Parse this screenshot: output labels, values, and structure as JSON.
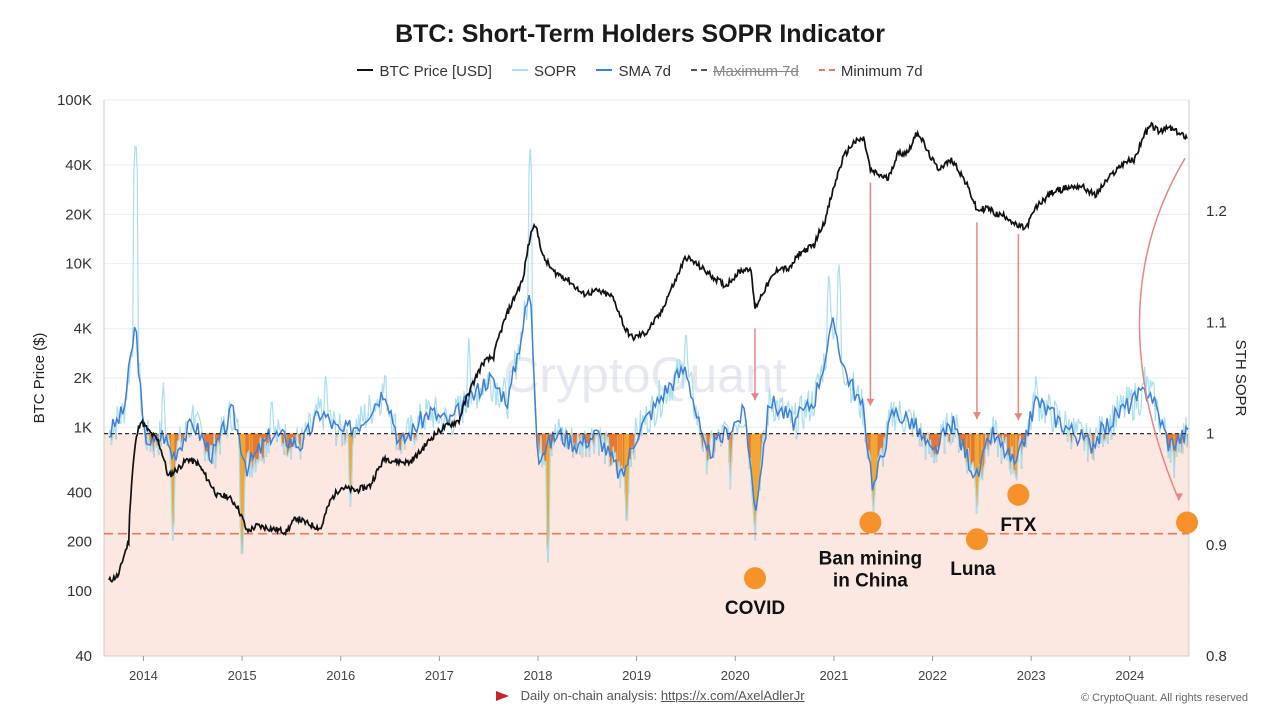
{
  "chart_data": {
    "type": "line",
    "title": "BTC: Short-Term Holders SOPR Indicator",
    "legend": [
      {
        "name": "BTC Price [USD]",
        "color": "#111111",
        "style": "solid",
        "strike": false
      },
      {
        "name": "SOPR",
        "color": "#a9dff0",
        "style": "solid",
        "strike": false
      },
      {
        "name": "SMA 7d",
        "color": "#3f7fd6",
        "style": "solid",
        "strike": false
      },
      {
        "name": "Maximum 7d",
        "color": "#555555",
        "style": "dashed",
        "strike": true
      },
      {
        "name": "Minimum 7d",
        "color": "#e07a5f",
        "style": "dashed",
        "strike": false
      }
    ],
    "legend_position": "top-center",
    "ylabel_left": "BTC Price ($)",
    "ylabel_right": "STH SOPR",
    "y_left_scale": "log",
    "y_left_range": [
      40,
      100000
    ],
    "y_left_ticks": [
      {
        "v": 100000,
        "label": "100K"
      },
      {
        "v": 40000,
        "label": "40K"
      },
      {
        "v": 20000,
        "label": "20K"
      },
      {
        "v": 10000,
        "label": "10K"
      },
      {
        "v": 4000,
        "label": "4K"
      },
      {
        "v": 2000,
        "label": "2K"
      },
      {
        "v": 1000,
        "label": "1K"
      },
      {
        "v": 400,
        "label": "400"
      },
      {
        "v": 200,
        "label": "200"
      },
      {
        "v": 100,
        "label": "100"
      },
      {
        "v": 40,
        "label": "40"
      }
    ],
    "y_right_range": [
      0.8,
      1.3
    ],
    "y_right_ticks": [
      {
        "v": 1.2,
        "label": "1.2"
      },
      {
        "v": 1.1,
        "label": "1.1"
      },
      {
        "v": 1.0,
        "label": "1"
      },
      {
        "v": 0.9,
        "label": "0.9"
      },
      {
        "v": 0.8,
        "label": "0.8"
      }
    ],
    "x_range": [
      2013.6,
      2024.6
    ],
    "x_ticks": [
      "2014",
      "2015",
      "2016",
      "2017",
      "2018",
      "2019",
      "2020",
      "2021",
      "2022",
      "2023",
      "2024"
    ],
    "reference_lines": {
      "sopr_one": 1.0,
      "minimum_7d": 0.91
    },
    "grid": true,
    "btc_price": [
      [
        2013.65,
        115
      ],
      [
        2013.75,
        125
      ],
      [
        2013.85,
        200
      ],
      [
        2013.92,
        800
      ],
      [
        2013.97,
        1100
      ],
      [
        2014.05,
        950
      ],
      [
        2014.15,
        820
      ],
      [
        2014.25,
        500
      ],
      [
        2014.35,
        560
      ],
      [
        2014.45,
        640
      ],
      [
        2014.55,
        600
      ],
      [
        2014.65,
        480
      ],
      [
        2014.75,
        380
      ],
      [
        2014.85,
        380
      ],
      [
        2014.95,
        330
      ],
      [
        2015.05,
        230
      ],
      [
        2015.15,
        250
      ],
      [
        2015.3,
        240
      ],
      [
        2015.45,
        230
      ],
      [
        2015.55,
        280
      ],
      [
        2015.65,
        260
      ],
      [
        2015.8,
        240
      ],
      [
        2015.9,
        360
      ],
      [
        2016.0,
        430
      ],
      [
        2016.15,
        410
      ],
      [
        2016.3,
        440
      ],
      [
        2016.45,
        650
      ],
      [
        2016.55,
        620
      ],
      [
        2016.7,
        610
      ],
      [
        2016.8,
        700
      ],
      [
        2016.95,
        900
      ],
      [
        2017.05,
        1000
      ],
      [
        2017.2,
        1100
      ],
      [
        2017.35,
        1900
      ],
      [
        2017.45,
        2500
      ],
      [
        2017.55,
        2700
      ],
      [
        2017.65,
        4300
      ],
      [
        2017.75,
        6000
      ],
      [
        2017.85,
        8000
      ],
      [
        2017.96,
        18000
      ],
      [
        2018.05,
        11000
      ],
      [
        2018.15,
        9000
      ],
      [
        2018.3,
        8000
      ],
      [
        2018.45,
        6500
      ],
      [
        2018.6,
        6800
      ],
      [
        2018.75,
        6300
      ],
      [
        2018.88,
        4000
      ],
      [
        2018.96,
        3500
      ],
      [
        2019.1,
        3800
      ],
      [
        2019.25,
        5000
      ],
      [
        2019.4,
        8000
      ],
      [
        2019.5,
        11000
      ],
      [
        2019.6,
        10000
      ],
      [
        2019.75,
        8500
      ],
      [
        2019.9,
        7300
      ],
      [
        2020.05,
        9000
      ],
      [
        2020.15,
        9500
      ],
      [
        2020.2,
        5300
      ],
      [
        2020.3,
        7000
      ],
      [
        2020.45,
        9500
      ],
      [
        2020.55,
        9200
      ],
      [
        2020.65,
        11500
      ],
      [
        2020.8,
        13000
      ],
      [
        2020.92,
        19000
      ],
      [
        2021.0,
        29000
      ],
      [
        2021.1,
        45000
      ],
      [
        2021.2,
        55000
      ],
      [
        2021.3,
        58000
      ],
      [
        2021.37,
        37000
      ],
      [
        2021.45,
        35000
      ],
      [
        2021.55,
        33000
      ],
      [
        2021.65,
        47000
      ],
      [
        2021.75,
        48000
      ],
      [
        2021.85,
        64000
      ],
      [
        2021.95,
        48000
      ],
      [
        2022.05,
        38000
      ],
      [
        2022.2,
        43000
      ],
      [
        2022.35,
        30000
      ],
      [
        2022.45,
        21000
      ],
      [
        2022.55,
        22000
      ],
      [
        2022.65,
        20000
      ],
      [
        2022.75,
        19500
      ],
      [
        2022.85,
        17000
      ],
      [
        2022.95,
        16500
      ],
      [
        2023.05,
        22000
      ],
      [
        2023.2,
        27000
      ],
      [
        2023.35,
        29000
      ],
      [
        2023.5,
        30000
      ],
      [
        2023.65,
        26000
      ],
      [
        2023.8,
        34000
      ],
      [
        2023.95,
        42000
      ],
      [
        2024.05,
        43000
      ],
      [
        2024.15,
        62000
      ],
      [
        2024.22,
        70000
      ],
      [
        2024.3,
        64000
      ],
      [
        2024.4,
        68000
      ],
      [
        2024.5,
        62000
      ],
      [
        2024.58,
        60000
      ]
    ],
    "sopr_sma_7d": [
      [
        2013.65,
        1.0
      ],
      [
        2013.8,
        1.02
      ],
      [
        2013.92,
        1.1
      ],
      [
        2014.0,
        1.0
      ],
      [
        2014.1,
        0.99
      ],
      [
        2014.2,
        1.0
      ],
      [
        2014.3,
        0.98
      ],
      [
        2014.5,
        1.01
      ],
      [
        2014.7,
        0.98
      ],
      [
        2014.9,
        1.02
      ],
      [
        2015.05,
        0.97
      ],
      [
        2015.3,
        1.0
      ],
      [
        2015.6,
        0.99
      ],
      [
        2015.8,
        1.02
      ],
      [
        2016.0,
        1.0
      ],
      [
        2016.2,
        1.01
      ],
      [
        2016.45,
        1.04
      ],
      [
        2016.6,
        0.99
      ],
      [
        2016.9,
        1.02
      ],
      [
        2017.1,
        1.01
      ],
      [
        2017.3,
        1.03
      ],
      [
        2017.5,
        1.05
      ],
      [
        2017.7,
        1.03
      ],
      [
        2017.92,
        1.13
      ],
      [
        2018.0,
        0.98
      ],
      [
        2018.2,
        1.0
      ],
      [
        2018.4,
        0.99
      ],
      [
        2018.6,
        1.0
      ],
      [
        2018.85,
        0.96
      ],
      [
        2019.0,
        1.0
      ],
      [
        2019.3,
        1.04
      ],
      [
        2019.5,
        1.06
      ],
      [
        2019.7,
        0.98
      ],
      [
        2019.9,
        1.0
      ],
      [
        2020.1,
        1.02
      ],
      [
        2020.2,
        0.93
      ],
      [
        2020.35,
        1.03
      ],
      [
        2020.6,
        1.01
      ],
      [
        2020.8,
        1.03
      ],
      [
        2021.0,
        1.1
      ],
      [
        2021.1,
        1.06
      ],
      [
        2021.3,
        1.02
      ],
      [
        2021.4,
        0.95
      ],
      [
        2021.6,
        1.02
      ],
      [
        2021.8,
        1.01
      ],
      [
        2022.0,
        0.98
      ],
      [
        2022.2,
        1.01
      ],
      [
        2022.45,
        0.96
      ],
      [
        2022.6,
        1.0
      ],
      [
        2022.85,
        0.97
      ],
      [
        2023.05,
        1.03
      ],
      [
        2023.3,
        1.01
      ],
      [
        2023.6,
        0.99
      ],
      [
        2023.9,
        1.02
      ],
      [
        2024.2,
        1.04
      ],
      [
        2024.4,
        0.99
      ],
      [
        2024.58,
        1.0
      ]
    ],
    "sopr_spikes": [
      [
        2013.92,
        1.27
      ],
      [
        2014.2,
        1.05
      ],
      [
        2014.5,
        1.03
      ],
      [
        2015.3,
        1.04
      ],
      [
        2015.85,
        1.06
      ],
      [
        2016.45,
        1.06
      ],
      [
        2017.3,
        1.09
      ],
      [
        2017.92,
        1.26
      ],
      [
        2019.5,
        1.1
      ],
      [
        2020.95,
        1.15
      ],
      [
        2021.05,
        1.16
      ],
      [
        2023.05,
        1.06
      ],
      [
        2024.15,
        1.06
      ],
      [
        2024.45,
        1.07
      ]
    ],
    "sopr_dips": [
      [
        2014.3,
        0.9
      ],
      [
        2015.0,
        0.88
      ],
      [
        2016.1,
        0.93
      ],
      [
        2018.1,
        0.88
      ],
      [
        2018.9,
        0.91
      ],
      [
        2019.95,
        0.95
      ],
      [
        2020.2,
        0.9
      ],
      [
        2021.4,
        0.92
      ],
      [
        2022.45,
        0.92
      ],
      [
        2022.85,
        0.95
      ],
      [
        2024.45,
        0.96
      ]
    ],
    "annotations": [
      {
        "label": "COVID",
        "x": 2020.2,
        "sopr": 0.87,
        "arrow_from_price": 4500,
        "arrow_to_sopr": 1.03
      },
      {
        "label": "Ban mining in China",
        "x": 2021.37,
        "sopr": 0.92,
        "arrow_from_price": 35000,
        "arrow_to_sopr": 1.025
      },
      {
        "label": "Luna",
        "x": 2022.45,
        "sopr": 0.905,
        "arrow_from_price": 20000,
        "arrow_to_sopr": 1.013
      },
      {
        "label": "FTX",
        "x": 2022.87,
        "sopr": 0.945,
        "arrow_from_price": 17000,
        "arrow_to_sopr": 1.012
      },
      {
        "label": "",
        "x": 2024.58,
        "sopr": 0.92,
        "arrow_from_price": 60000,
        "arrow_to_sopr": 0.94
      }
    ],
    "watermark": "CryptoQuant"
  },
  "footer": {
    "prefix": "Daily on-chain analysis: ",
    "url": "https://x.com/AxelAdlerJr",
    "copyright": "© CryptoQuant. All rights reserved"
  }
}
